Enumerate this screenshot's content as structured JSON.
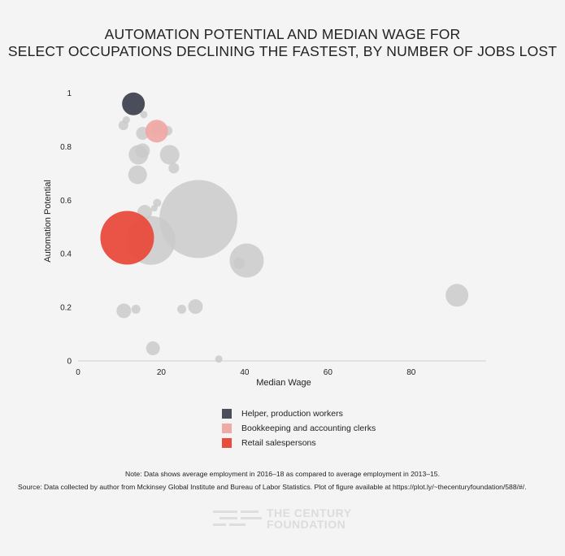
{
  "chart_data": {
    "type": "scatter",
    "title_lines": [
      "AUTOMATION POTENTIAL AND MEDIAN WAGE FOR",
      "SELECT OCCUPATIONS DECLINING THE FASTEST, BY NUMBER OF JOBS LOST"
    ],
    "xlabel": "Median Wage",
    "ylabel": "Automation Potential",
    "xlim": [
      0,
      98
    ],
    "ylim": [
      0,
      1.02
    ],
    "xticks": [
      0,
      20,
      40,
      60,
      80
    ],
    "yticks": [
      0,
      0.2,
      0.4,
      0.6,
      0.8,
      1
    ],
    "colors": {
      "other": "#c9c9c9",
      "helper": "#4a4d5a",
      "bookkeeping": "#efaaa5",
      "retail": "#e94b3c"
    },
    "points": [
      {
        "x": 28.9,
        "y": 0.53,
        "r": 48,
        "group": "other"
      },
      {
        "x": 17.5,
        "y": 0.45,
        "r": 30,
        "group": "other"
      },
      {
        "x": 40.5,
        "y": 0.375,
        "r": 21,
        "group": "other"
      },
      {
        "x": 91,
        "y": 0.245,
        "r": 14,
        "group": "other"
      },
      {
        "x": 22,
        "y": 0.77,
        "r": 12,
        "group": "other"
      },
      {
        "x": 14.5,
        "y": 0.77,
        "r": 12,
        "group": "other"
      },
      {
        "x": 14.3,
        "y": 0.695,
        "r": 11.5,
        "group": "other"
      },
      {
        "x": 15.5,
        "y": 0.785,
        "r": 9,
        "group": "other"
      },
      {
        "x": 16,
        "y": 0.555,
        "r": 9,
        "group": "other"
      },
      {
        "x": 15.5,
        "y": 0.85,
        "r": 8,
        "group": "other"
      },
      {
        "x": 19,
        "y": 0.87,
        "r": 8,
        "group": "other"
      },
      {
        "x": 11,
        "y": 0.187,
        "r": 9,
        "group": "other"
      },
      {
        "x": 28.2,
        "y": 0.203,
        "r": 9,
        "group": "other"
      },
      {
        "x": 18,
        "y": 0.047,
        "r": 8.5,
        "group": "other"
      },
      {
        "x": 38.7,
        "y": 0.365,
        "r": 7,
        "group": "other"
      },
      {
        "x": 23,
        "y": 0.72,
        "r": 6.5,
        "group": "other"
      },
      {
        "x": 21.5,
        "y": 0.86,
        "r": 6,
        "group": "other"
      },
      {
        "x": 10.9,
        "y": 0.88,
        "r": 6,
        "group": "other"
      },
      {
        "x": 13.9,
        "y": 0.193,
        "r": 5.5,
        "group": "other"
      },
      {
        "x": 24.9,
        "y": 0.193,
        "r": 5.5,
        "group": "other"
      },
      {
        "x": 19,
        "y": 0.59,
        "r": 5,
        "group": "other"
      },
      {
        "x": 11.6,
        "y": 0.9,
        "r": 4.5,
        "group": "other"
      },
      {
        "x": 15.8,
        "y": 0.92,
        "r": 4.5,
        "group": "other"
      },
      {
        "x": 18.3,
        "y": 0.57,
        "r": 4,
        "group": "other"
      },
      {
        "x": 33.8,
        "y": 0.007,
        "r": 4.5,
        "group": "other"
      },
      {
        "x": 18.9,
        "y": 0.858,
        "r": 14,
        "group": "bookkeeping"
      },
      {
        "x": 11.8,
        "y": 0.46,
        "r": 33,
        "group": "retail"
      },
      {
        "x": 13.3,
        "y": 0.96,
        "r": 14,
        "group": "helper"
      }
    ],
    "legend": [
      {
        "label": "Helper, production workers",
        "color": "#4a4d5a"
      },
      {
        "label": "Bookkeeping and accounting clerks",
        "color": "#efaaa5"
      },
      {
        "label": "Retail salespersons",
        "color": "#e94b3c"
      }
    ]
  },
  "footer": {
    "note": "Note: Data shows average employment in 2016–18 as compared to average employment in 2013–15.",
    "source": "Source: Data collected by author from Mckinsey Global Institute and Bureau of Labor Statistics. Plot of figure available at https://plot.ly/~thecenturyfoundation/588/#/."
  },
  "logo": {
    "line1": "THE CENTURY",
    "line2": "FOUNDATION"
  }
}
